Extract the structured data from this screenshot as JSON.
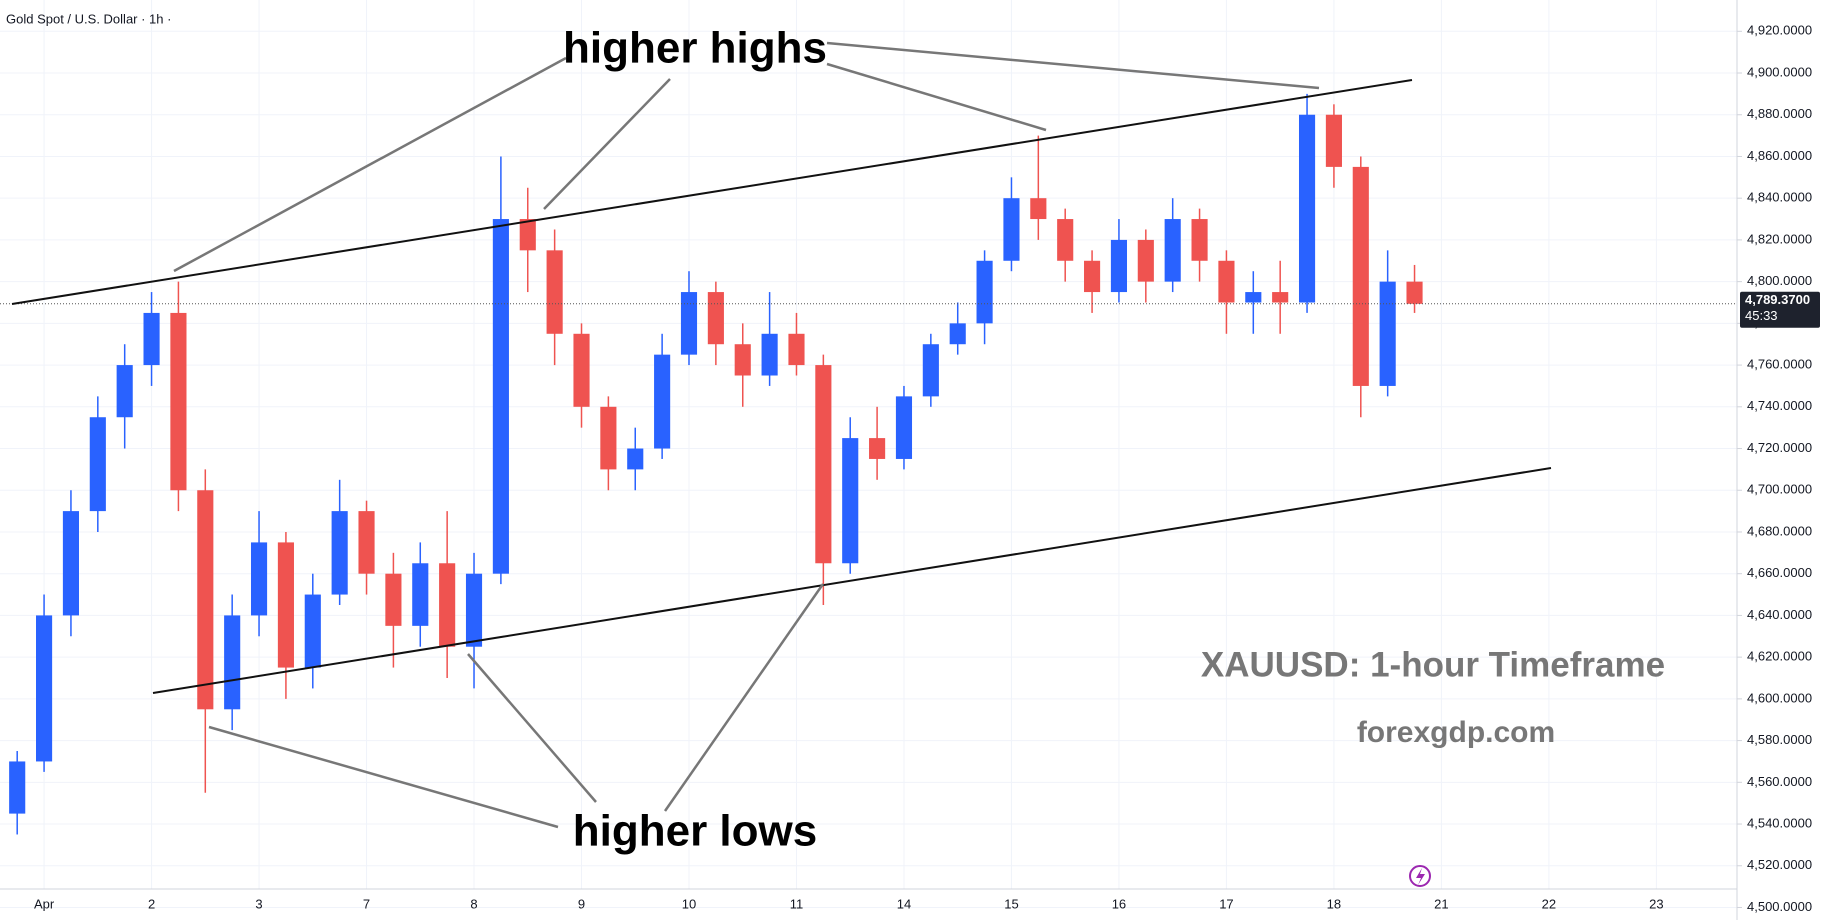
{
  "chart_data": {
    "type": "candlestick",
    "title": "Gold Spot / U.S. Dollar · 1h ·",
    "annotations": {
      "higher_highs": "higher highs",
      "higher_lows": "higher lows",
      "timeframe": "XAUUSD: 1-hour Timeframe",
      "site": "forexgdp.com"
    },
    "last_price": {
      "value": 4789.37,
      "label": "4,789.3700"
    },
    "countdown": "45:33",
    "up_color": "#2962ff",
    "down_color": "#ef5350",
    "xlim": [
      -0.41,
      15.75
    ],
    "xticks": [
      {
        "value": 0,
        "label": "Apr"
      },
      {
        "value": 1,
        "label": "2"
      },
      {
        "value": 2,
        "label": "3"
      },
      {
        "value": 3,
        "label": "7"
      },
      {
        "value": 4,
        "label": "8"
      },
      {
        "value": 5,
        "label": "9"
      },
      {
        "value": 6,
        "label": "10"
      },
      {
        "value": 7,
        "label": "11"
      },
      {
        "value": 8,
        "label": "14"
      },
      {
        "value": 9,
        "label": "15"
      },
      {
        "value": 10,
        "label": "16"
      },
      {
        "value": 11,
        "label": "17"
      },
      {
        "value": 12,
        "label": "18"
      },
      {
        "value": 13,
        "label": "21"
      },
      {
        "value": 14,
        "label": "22"
      },
      {
        "value": 15,
        "label": "23"
      }
    ],
    "ylim": [
      4494,
      4935
    ],
    "yticks": [
      {
        "value": 4500,
        "label": "4,500.0000"
      },
      {
        "value": 4520,
        "label": "4,520.0000"
      },
      {
        "value": 4540,
        "label": "4,540.0000"
      },
      {
        "value": 4560,
        "label": "4,560.0000"
      },
      {
        "value": 4580,
        "label": "4,580.0000"
      },
      {
        "value": 4600,
        "label": "4,600.0000"
      },
      {
        "value": 4620,
        "label": "4,620.0000"
      },
      {
        "value": 4640,
        "label": "4,640.0000"
      },
      {
        "value": 4660,
        "label": "4,660.0000"
      },
      {
        "value": 4680,
        "label": "4,680.0000"
      },
      {
        "value": 4700,
        "label": "4,700.0000"
      },
      {
        "value": 4720,
        "label": "4,720.0000"
      },
      {
        "value": 4740,
        "label": "4,740.0000"
      },
      {
        "value": 4760,
        "label": "4,760.0000"
      },
      {
        "value": 4780,
        "label": "4,780.0000"
      },
      {
        "value": 4800,
        "label": "4,800.0000"
      },
      {
        "value": 4820,
        "label": "4,820.0000"
      },
      {
        "value": 4840,
        "label": "4,840.0000"
      },
      {
        "value": 4860,
        "label": "4,860.0000"
      },
      {
        "value": 4880,
        "label": "4,880.0000"
      },
      {
        "value": 4900,
        "label": "4,900.0000"
      },
      {
        "value": 4920,
        "label": "4,920.0000"
      }
    ],
    "x": [
      -0.25,
      0,
      0.25,
      0.5,
      0.75,
      1,
      1.25,
      1.5,
      1.75,
      2,
      2.25,
      2.5,
      2.75,
      3,
      3.25,
      3.5,
      3.75,
      4,
      4.25,
      4.5,
      4.75,
      5,
      5.25,
      5.5,
      5.75,
      6,
      6.25,
      6.5,
      6.75,
      7,
      7.25,
      7.5,
      7.75,
      8,
      8.25,
      8.5,
      8.75,
      9,
      9.25,
      9.5,
      9.75,
      10,
      10.25,
      10.5,
      10.75,
      11,
      11.25,
      11.5,
      11.75,
      12,
      12.25,
      12.5,
      12.75
    ],
    "open": [
      4545,
      4570,
      4640,
      4690,
      4735,
      4760,
      4785,
      4700,
      4595,
      4640,
      4675,
      4615,
      4650,
      4690,
      4660,
      4635,
      4665,
      4625,
      4660,
      4830,
      4815,
      4775,
      4740,
      4710,
      4720,
      4765,
      4795,
      4770,
      4755,
      4775,
      4760,
      4665,
      4725,
      4715,
      4745,
      4770,
      4780,
      4810,
      4840,
      4830,
      4810,
      4795,
      4820,
      4800,
      4830,
      4810,
      4790,
      4795,
      4790,
      4880,
      4855,
      4750,
      4800
    ],
    "high": [
      4575,
      4650,
      4700,
      4745,
      4770,
      4795,
      4800,
      4710,
      4650,
      4690,
      4680,
      4660,
      4705,
      4695,
      4670,
      4675,
      4690,
      4670,
      4860,
      4845,
      4825,
      4780,
      4745,
      4730,
      4775,
      4805,
      4800,
      4780,
      4795,
      4785,
      4765,
      4735,
      4740,
      4750,
      4775,
      4790,
      4815,
      4850,
      4870,
      4835,
      4815,
      4830,
      4825,
      4840,
      4835,
      4815,
      4805,
      4810,
      4890,
      4885,
      4860,
      4815,
      4808
    ],
    "low": [
      4535,
      4565,
      4630,
      4680,
      4720,
      4750,
      4690,
      4555,
      4585,
      4630,
      4600,
      4605,
      4645,
      4650,
      4615,
      4625,
      4610,
      4605,
      4655,
      4795,
      4760,
      4730,
      4700,
      4700,
      4715,
      4760,
      4760,
      4740,
      4750,
      4755,
      4645,
      4660,
      4705,
      4710,
      4740,
      4765,
      4770,
      4805,
      4820,
      4800,
      4785,
      4790,
      4790,
      4795,
      4800,
      4775,
      4775,
      4775,
      4785,
      4845,
      4735,
      4745,
      4785
    ],
    "close": [
      4570,
      4640,
      4690,
      4735,
      4760,
      4785,
      4700,
      4595,
      4640,
      4675,
      4615,
      4650,
      4690,
      4660,
      4635,
      4665,
      4625,
      4660,
      4830,
      4815,
      4775,
      4740,
      4710,
      4720,
      4765,
      4795,
      4770,
      4755,
      4775,
      4760,
      4665,
      4725,
      4715,
      4745,
      4770,
      4780,
      4810,
      4840,
      4830,
      4810,
      4795,
      4820,
      4800,
      4830,
      4810,
      4790,
      4795,
      4790,
      4880,
      4855,
      4750,
      4800,
      4789.37
    ]
  }
}
